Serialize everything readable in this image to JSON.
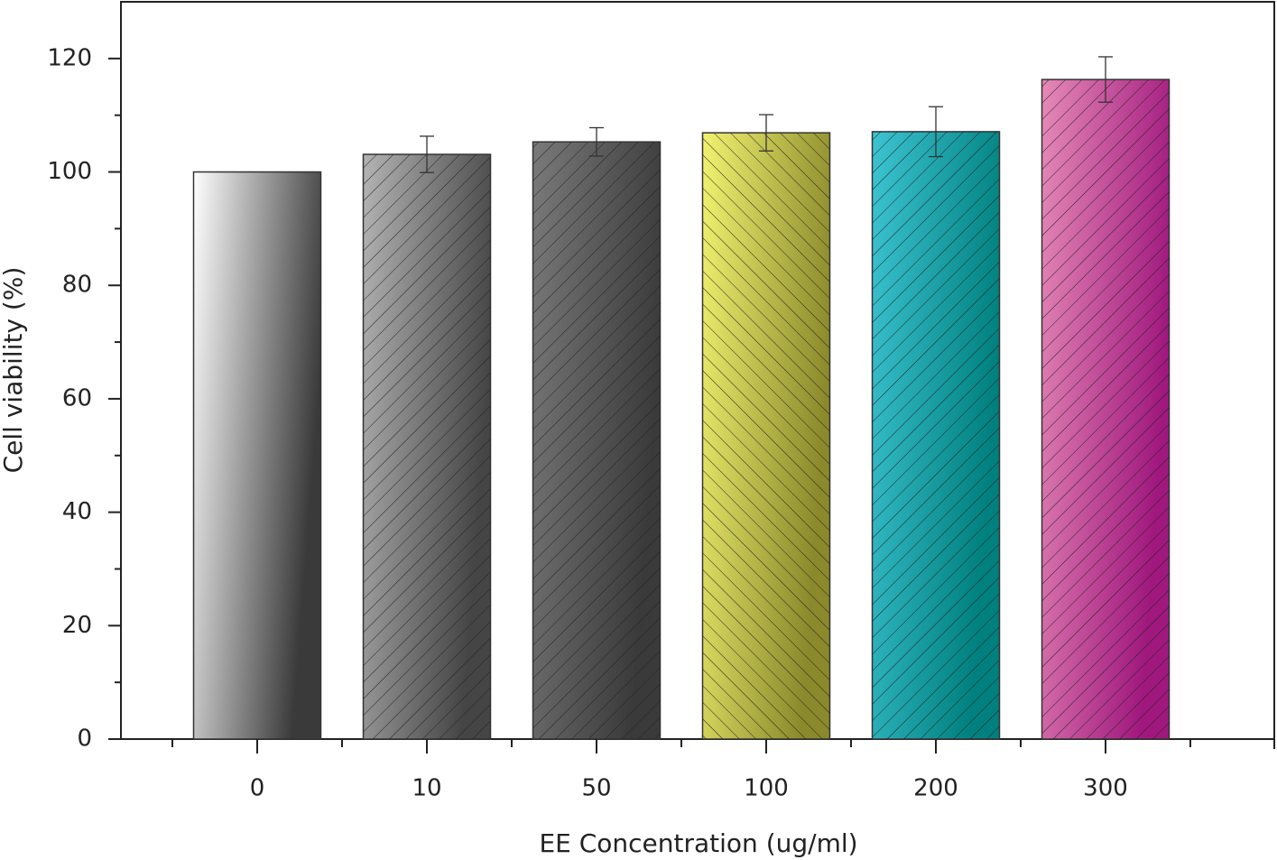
{
  "chart_data": {
    "type": "bar",
    "x_label": "EE Concentration (ug/ml)",
    "y_label": "Cell viability (%)",
    "categories": [
      "0",
      "10",
      "50",
      "100",
      "200",
      "300"
    ],
    "values": [
      100,
      103.1,
      105.3,
      106.9,
      107.1,
      116.3
    ],
    "errors": [
      null,
      3.2,
      2.5,
      3.2,
      4.4,
      4.0
    ],
    "colors": [
      "#ffffff",
      "#b4b4b4",
      "#7a7a7a",
      "#f2f270",
      "#3cc4d2",
      "#e68ab8"
    ],
    "colors_end": [
      "#3a3a3a",
      "#454545",
      "#3a3a3a",
      "#8a8a2c",
      "#00807e",
      "#a0187e"
    ],
    "hatch": [
      null,
      "forward",
      "forward",
      "back",
      "forward",
      "forward"
    ],
    "ylim": [
      0,
      130
    ],
    "yticks": [
      0,
      20,
      40,
      60,
      80,
      100,
      120
    ],
    "grid": false
  }
}
